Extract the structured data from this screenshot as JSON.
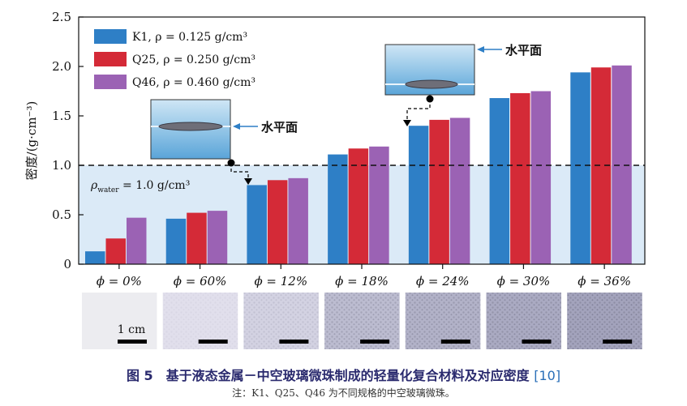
{
  "chart_data": {
    "type": "bar",
    "ylabel": "密度/(g·cm⁻³)",
    "ylim": [
      0,
      2.5
    ],
    "yticks": [
      "0",
      "0.5",
      "1.0",
      "1.5",
      "2.0",
      "2.5"
    ],
    "grid": false,
    "legend_position": "top-left",
    "categories": [
      "ϕ = 0%",
      "ϕ = 60%",
      "ϕ = 12%",
      "ϕ = 18%",
      "ϕ = 24%",
      "ϕ = 30%",
      "ϕ = 36%"
    ],
    "series": [
      {
        "name": "K1, ρ = 0.125 g/cm³",
        "color": "#2e7fc6",
        "values": [
          0.13,
          0.46,
          0.8,
          1.11,
          1.4,
          1.68,
          1.94
        ]
      },
      {
        "name": "Q25, ρ = 0.250 g/cm³",
        "color": "#d42a37",
        "values": [
          0.26,
          0.52,
          0.85,
          1.17,
          1.46,
          1.73,
          1.99
        ]
      },
      {
        "name": "Q46, ρ = 0.460 g/cm³",
        "color": "#9b62b4",
        "values": [
          0.47,
          0.54,
          0.87,
          1.19,
          1.48,
          1.75,
          2.01
        ]
      }
    ],
    "reference_line": {
      "value": 1.0,
      "label": "ρwater = 1.0 g/cm³",
      "label_main": "ρ",
      "label_sub": "water",
      "label_rest": " = 1.0 g/cm³",
      "region_color": "#dbeaf7"
    },
    "annotations": [
      {
        "text": "水平面",
        "near_category": 2
      },
      {
        "text": "水平面",
        "near_category": 5
      }
    ],
    "scale_bar_label": "1 cm"
  },
  "caption": {
    "figure": "图 5　基于液态金属－中空玻璃微珠制成的轻量化复合材料及对应密度 ",
    "reference": "[10]"
  },
  "note": "注：K1、Q25、Q46 为不同规格的中空玻璃微珠。"
}
